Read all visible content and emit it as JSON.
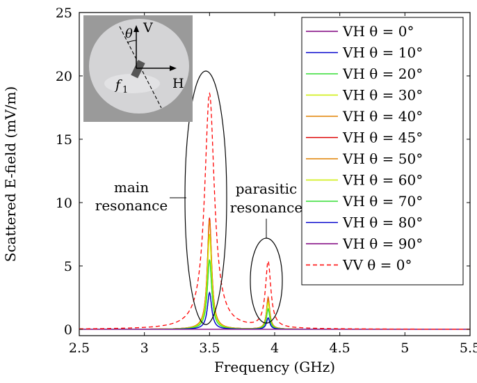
{
  "chart_data": {
    "type": "line",
    "xlabel": "Frequency (GHz)",
    "ylabel": "Scattered E-field (mV/m)",
    "xlim": [
      2.5,
      5.5
    ],
    "ylim": [
      -0.5,
      25
    ],
    "xticks": [
      2.5,
      3,
      3.5,
      4,
      4.5,
      5,
      5.5
    ],
    "yticks": [
      0,
      5,
      10,
      15,
      20,
      25
    ],
    "xtick_labels": [
      "2.5",
      "3",
      "3.5",
      "4",
      "4.5",
      "5",
      "5.5"
    ],
    "ytick_labels": [
      "0",
      "5",
      "10",
      "15",
      "20",
      "25"
    ],
    "legend_position": "top-right",
    "grid": false,
    "resonances": {
      "main_f0": 3.5,
      "parasitic_f0": 3.95
    },
    "series": [
      {
        "name": "VH θ = 0°",
        "color": "#7f007f",
        "dash": "solid",
        "main_peak": 0.0,
        "parasitic_peak": 0.0
      },
      {
        "name": "VH θ = 10°",
        "color": "#0000cc",
        "dash": "solid",
        "main_peak": 2.9,
        "parasitic_peak": 0.9
      },
      {
        "name": "VH θ = 20°",
        "color": "#33dd33",
        "dash": "solid",
        "main_peak": 5.5,
        "parasitic_peak": 1.6
      },
      {
        "name": "VH θ = 30°",
        "color": "#ccee00",
        "dash": "solid",
        "main_peak": 7.5,
        "parasitic_peak": 2.1
      },
      {
        "name": "VH θ = 40°",
        "color": "#e08000",
        "dash": "solid",
        "main_peak": 8.6,
        "parasitic_peak": 2.4
      },
      {
        "name": "VH θ = 45°",
        "color": "#dd0000",
        "dash": "solid",
        "main_peak": 8.8,
        "parasitic_peak": 2.5
      },
      {
        "name": "VH θ = 50°",
        "color": "#e08000",
        "dash": "solid",
        "main_peak": 8.6,
        "parasitic_peak": 2.4
      },
      {
        "name": "VH θ = 60°",
        "color": "#ccee00",
        "dash": "solid",
        "main_peak": 7.5,
        "parasitic_peak": 2.1
      },
      {
        "name": "VH θ = 70°",
        "color": "#33dd33",
        "dash": "solid",
        "main_peak": 5.5,
        "parasitic_peak": 1.6
      },
      {
        "name": "VH θ = 80°",
        "color": "#0000cc",
        "dash": "solid",
        "main_peak": 2.9,
        "parasitic_peak": 0.9
      },
      {
        "name": "VH θ = 90°",
        "color": "#7f007f",
        "dash": "solid",
        "main_peak": 0.0,
        "parasitic_peak": 0.0
      },
      {
        "name": "VV θ = 0°",
        "color": "#ff0000",
        "dash": "dashed",
        "main_peak": 18.6,
        "parasitic_peak": 5.2
      }
    ],
    "annotations": {
      "main_line1": "main",
      "main_line2": "resonance",
      "parasitic_line1": "parasitic",
      "parasitic_line2": "resonance"
    },
    "inset": {
      "description_labels": {
        "theta": "θ",
        "v": "V",
        "h": "H",
        "f": "f",
        "f_sub": "1"
      }
    }
  }
}
